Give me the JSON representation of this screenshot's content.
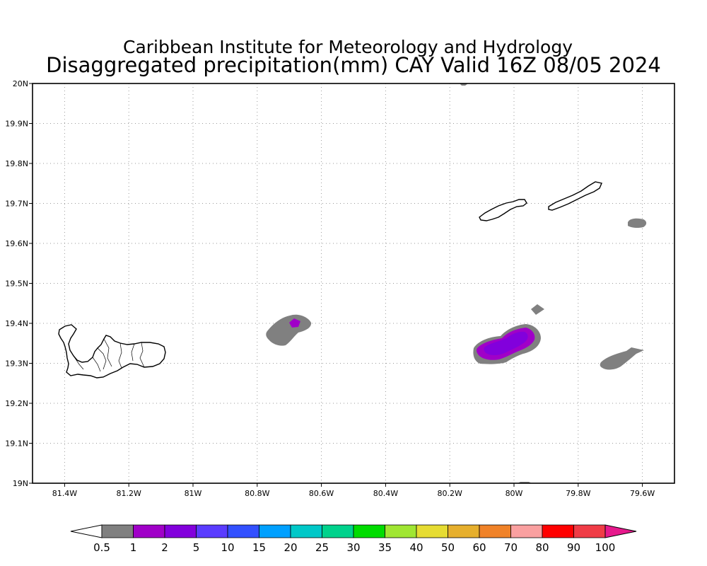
{
  "title": {
    "line1": "Caribbean Institute for Meteorology and Hydrology",
    "line2": "Disaggregated precipitation(mm) CAY Valid 16Z 08/05 2024"
  },
  "map": {
    "lon_range": [
      -81.5,
      -79.5
    ],
    "lat_range": [
      19.0,
      20.0
    ],
    "lon_ticks": [
      -81.4,
      -81.2,
      -81.0,
      -80.8,
      -80.6,
      -80.4,
      -80.2,
      -80.0,
      -79.8,
      -79.6
    ],
    "lon_tick_labels": [
      "81.4W",
      "81.2W",
      "81W",
      "80.8W",
      "80.6W",
      "80.4W",
      "80.2W",
      "80W",
      "79.8W",
      "79.6W"
    ],
    "lat_ticks": [
      19.0,
      19.1,
      19.2,
      19.3,
      19.4,
      19.5,
      19.6,
      19.7,
      19.8,
      19.9,
      20.0
    ],
    "lat_tick_labels": [
      "19N",
      "19.1N",
      "19.2N",
      "19.3N",
      "19.4N",
      "19.5N",
      "19.6N",
      "19.7N",
      "19.8N",
      "19.9N",
      "20N"
    ],
    "grid": true,
    "islands": [
      "Grand Cayman",
      "Little Cayman",
      "Cayman Brac"
    ]
  },
  "precip_areas": [
    {
      "lon": -80.68,
      "lat": 19.39,
      "level": "0.5",
      "color": "#808080"
    },
    {
      "lon": -80.68,
      "lat": 19.4,
      "level": "1",
      "color": "#a000c8"
    },
    {
      "lon": -80.03,
      "lat": 19.34,
      "level": "0.5",
      "color": "#808080"
    },
    {
      "lon": -80.03,
      "lat": 19.34,
      "level": "1",
      "color": "#a000c8"
    },
    {
      "lon": -80.05,
      "lat": 19.34,
      "level": "2",
      "color": "#8200dc"
    },
    {
      "lon": -79.93,
      "lat": 19.43,
      "level": "0.5",
      "color": "#808080"
    },
    {
      "lon": -79.67,
      "lat": 19.31,
      "level": "0.5",
      "color": "#808080"
    },
    {
      "lon": -79.62,
      "lat": 19.66,
      "level": "0.5",
      "color": "#808080"
    },
    {
      "lon": -80.16,
      "lat": 20.0,
      "level": "0.5",
      "color": "#808080"
    },
    {
      "lon": -79.98,
      "lat": 19.0,
      "level": "0.5",
      "color": "#808080"
    }
  ],
  "colorbar": {
    "labels": [
      "0.5",
      "1",
      "2",
      "5",
      "10",
      "15",
      "20",
      "25",
      "30",
      "35",
      "40",
      "50",
      "60",
      "70",
      "80",
      "90",
      "100"
    ],
    "colors": [
      "#808080",
      "#a000c8",
      "#8200dc",
      "#5a3cff",
      "#3250ff",
      "#00a0ff",
      "#00c8c8",
      "#00d28c",
      "#00dc00",
      "#a0e632",
      "#e6dc32",
      "#e6af2d",
      "#f08228",
      "#faa0a0",
      "#ff0000",
      "#f03c46"
    ],
    "low_end_color": "#ffffff",
    "high_end_color": "#e6198c"
  }
}
